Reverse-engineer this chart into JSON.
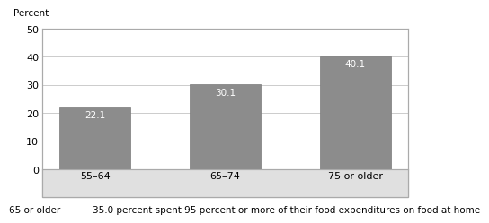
{
  "categories": [
    "55–64",
    "65–74",
    "75 or older"
  ],
  "values": [
    22.1,
    30.1,
    40.1
  ],
  "bar_color": "#8c8c8c",
  "bar_edgecolor": "#7a7a7a",
  "ylim": [
    0,
    50
  ],
  "yticks": [
    0,
    10,
    20,
    30,
    40,
    50
  ],
  "ylabel_text": "Percent",
  "ylabel_fontsize": 7.5,
  "tick_fontsize": 8,
  "value_label_fontsize": 7.5,
  "value_label_color": "white",
  "footer_left": "65 or older",
  "footer_right": "35.0 percent spent 95 percent or more of their food expenditures on food at home",
  "footer_fontsize": 7.5,
  "xticklabel_area_color": "#e0e0e0",
  "background_color": "#ffffff",
  "grid_color": "#cccccc",
  "spine_color": "#aaaaaa",
  "bar_width": 0.55
}
